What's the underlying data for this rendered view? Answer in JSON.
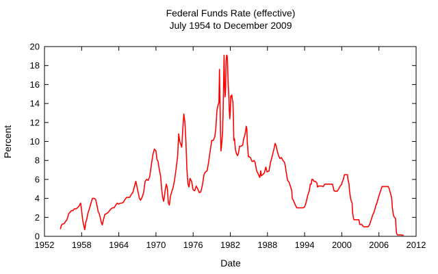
{
  "chart_data": {
    "type": "line",
    "title": "Federal Funds Rate (effective)",
    "subtitle": "July 1954 to December 2009",
    "xlabel": "Date",
    "ylabel": "Percent",
    "xlim": [
      1952,
      2012
    ],
    "ylim": [
      0,
      20
    ],
    "x_ticks": [
      1952,
      1958,
      1964,
      1970,
      1976,
      1982,
      1988,
      1994,
      2000,
      2006,
      2012
    ],
    "y_ticks": [
      0,
      2,
      4,
      6,
      8,
      10,
      12,
      14,
      16,
      18,
      20
    ],
    "grid": false,
    "legend": "none",
    "line_color": "#ff0000",
    "frame_color": "#000000",
    "series": [
      {
        "name": "Federal Funds Rate (effective), percent",
        "points": [
          [
            1954.58,
            0.8
          ],
          [
            1954.75,
            1.2
          ],
          [
            1954.92,
            1.3
          ],
          [
            1955.08,
            1.3
          ],
          [
            1955.25,
            1.4
          ],
          [
            1955.42,
            1.6
          ],
          [
            1955.58,
            1.7
          ],
          [
            1955.75,
            2.0
          ],
          [
            1955.92,
            2.4
          ],
          [
            1956.08,
            2.5
          ],
          [
            1956.33,
            2.7
          ],
          [
            1956.58,
            2.7
          ],
          [
            1956.83,
            2.9
          ],
          [
            1957.08,
            2.9
          ],
          [
            1957.33,
            3.0
          ],
          [
            1957.58,
            3.2
          ],
          [
            1957.83,
            3.5
          ],
          [
            1958.0,
            2.7
          ],
          [
            1958.17,
            1.7
          ],
          [
            1958.33,
            1.2
          ],
          [
            1958.5,
            0.7
          ],
          [
            1958.67,
            1.5
          ],
          [
            1958.83,
            1.8
          ],
          [
            1959.0,
            2.4
          ],
          [
            1959.25,
            2.9
          ],
          [
            1959.5,
            3.5
          ],
          [
            1959.75,
            4.0
          ],
          [
            1960.0,
            4.0
          ],
          [
            1960.25,
            3.9
          ],
          [
            1960.5,
            3.2
          ],
          [
            1960.67,
            2.6
          ],
          [
            1960.83,
            2.4
          ],
          [
            1961.0,
            2.0
          ],
          [
            1961.17,
            1.5
          ],
          [
            1961.33,
            1.2
          ],
          [
            1961.5,
            1.7
          ],
          [
            1961.75,
            2.3
          ],
          [
            1962.0,
            2.4
          ],
          [
            1962.25,
            2.5
          ],
          [
            1962.5,
            2.7
          ],
          [
            1962.75,
            2.9
          ],
          [
            1963.0,
            3.0
          ],
          [
            1963.25,
            3.0
          ],
          [
            1963.5,
            3.3
          ],
          [
            1963.75,
            3.5
          ],
          [
            1964.0,
            3.4
          ],
          [
            1964.25,
            3.5
          ],
          [
            1964.5,
            3.5
          ],
          [
            1964.75,
            3.6
          ],
          [
            1965.0,
            3.9
          ],
          [
            1965.25,
            4.1
          ],
          [
            1965.5,
            4.1
          ],
          [
            1965.75,
            4.1
          ],
          [
            1966.0,
            4.4
          ],
          [
            1966.25,
            4.6
          ],
          [
            1966.5,
            5.2
          ],
          [
            1966.75,
            5.8
          ],
          [
            1967.0,
            5.0
          ],
          [
            1967.17,
            4.5
          ],
          [
            1967.33,
            4.0
          ],
          [
            1967.5,
            3.8
          ],
          [
            1967.75,
            4.1
          ],
          [
            1968.0,
            4.6
          ],
          [
            1968.25,
            5.8
          ],
          [
            1968.5,
            6.0
          ],
          [
            1968.75,
            5.9
          ],
          [
            1969.0,
            6.3
          ],
          [
            1969.25,
            7.5
          ],
          [
            1969.5,
            8.6
          ],
          [
            1969.75,
            9.2
          ],
          [
            1970.0,
            9.0
          ],
          [
            1970.17,
            8.1
          ],
          [
            1970.33,
            7.9
          ],
          [
            1970.5,
            7.2
          ],
          [
            1970.75,
            6.3
          ],
          [
            1970.92,
            5.0
          ],
          [
            1971.08,
            4.1
          ],
          [
            1971.25,
            3.7
          ],
          [
            1971.5,
            4.9
          ],
          [
            1971.67,
            5.5
          ],
          [
            1971.83,
            5.1
          ],
          [
            1972.0,
            3.5
          ],
          [
            1972.17,
            3.3
          ],
          [
            1972.33,
            4.2
          ],
          [
            1972.5,
            4.6
          ],
          [
            1972.75,
            5.1
          ],
          [
            1973.0,
            5.9
          ],
          [
            1973.25,
            7.1
          ],
          [
            1973.5,
            8.5
          ],
          [
            1973.67,
            10.8
          ],
          [
            1973.83,
            10.0
          ],
          [
            1974.0,
            9.7
          ],
          [
            1974.17,
            9.4
          ],
          [
            1974.33,
            11.3
          ],
          [
            1974.5,
            12.9
          ],
          [
            1974.67,
            12.0
          ],
          [
            1974.83,
            10.1
          ],
          [
            1975.0,
            7.1
          ],
          [
            1975.17,
            5.5
          ],
          [
            1975.33,
            5.2
          ],
          [
            1975.5,
            6.1
          ],
          [
            1975.75,
            5.8
          ],
          [
            1976.0,
            4.9
          ],
          [
            1976.25,
            4.8
          ],
          [
            1976.5,
            5.3
          ],
          [
            1976.75,
            5.0
          ],
          [
            1977.0,
            4.6
          ],
          [
            1977.25,
            4.7
          ],
          [
            1977.5,
            5.4
          ],
          [
            1977.75,
            6.5
          ],
          [
            1978.0,
            6.8
          ],
          [
            1978.25,
            6.9
          ],
          [
            1978.5,
            7.8
          ],
          [
            1978.75,
            9.0
          ],
          [
            1979.0,
            10.1
          ],
          [
            1979.25,
            10.1
          ],
          [
            1979.5,
            10.5
          ],
          [
            1979.67,
            11.4
          ],
          [
            1979.83,
            13.2
          ],
          [
            1980.0,
            13.8
          ],
          [
            1980.17,
            14.1
          ],
          [
            1980.25,
            17.6
          ],
          [
            1980.42,
            11.0
          ],
          [
            1980.5,
            9.0
          ],
          [
            1980.58,
            9.5
          ],
          [
            1980.75,
            10.9
          ],
          [
            1980.83,
            12.8
          ],
          [
            1980.92,
            15.9
          ],
          [
            1981.0,
            19.1
          ],
          [
            1981.08,
            15.9
          ],
          [
            1981.17,
            14.7
          ],
          [
            1981.25,
            15.7
          ],
          [
            1981.33,
            18.5
          ],
          [
            1981.42,
            19.1
          ],
          [
            1981.5,
            19.0
          ],
          [
            1981.58,
            17.8
          ],
          [
            1981.67,
            15.9
          ],
          [
            1981.75,
            15.1
          ],
          [
            1981.83,
            13.3
          ],
          [
            1981.92,
            12.4
          ],
          [
            1982.0,
            13.2
          ],
          [
            1982.08,
            14.8
          ],
          [
            1982.17,
            14.7
          ],
          [
            1982.25,
            14.9
          ],
          [
            1982.33,
            14.4
          ],
          [
            1982.42,
            14.2
          ],
          [
            1982.5,
            12.6
          ],
          [
            1982.58,
            10.1
          ],
          [
            1982.67,
            10.3
          ],
          [
            1982.75,
            9.7
          ],
          [
            1982.83,
            9.2
          ],
          [
            1982.92,
            8.9
          ],
          [
            1983.0,
            8.7
          ],
          [
            1983.17,
            8.5
          ],
          [
            1983.33,
            8.8
          ],
          [
            1983.5,
            9.5
          ],
          [
            1983.75,
            9.5
          ],
          [
            1984.0,
            9.6
          ],
          [
            1984.17,
            10.3
          ],
          [
            1984.33,
            10.6
          ],
          [
            1984.5,
            11.2
          ],
          [
            1984.58,
            11.6
          ],
          [
            1984.67,
            11.3
          ],
          [
            1984.75,
            9.9
          ],
          [
            1984.92,
            8.4
          ],
          [
            1985.0,
            8.4
          ],
          [
            1985.25,
            8.3
          ],
          [
            1985.5,
            7.9
          ],
          [
            1985.67,
            7.9
          ],
          [
            1985.83,
            8.0
          ],
          [
            1986.0,
            7.8
          ],
          [
            1986.25,
            6.9
          ],
          [
            1986.5,
            6.6
          ],
          [
            1986.75,
            6.2
          ],
          [
            1986.92,
            6.9
          ],
          [
            1987.0,
            6.4
          ],
          [
            1987.25,
            6.5
          ],
          [
            1987.5,
            6.7
          ],
          [
            1987.75,
            7.3
          ],
          [
            1987.92,
            6.8
          ],
          [
            1988.0,
            6.8
          ],
          [
            1988.25,
            6.9
          ],
          [
            1988.5,
            7.8
          ],
          [
            1988.75,
            8.4
          ],
          [
            1989.0,
            9.1
          ],
          [
            1989.25,
            9.8
          ],
          [
            1989.42,
            9.5
          ],
          [
            1989.5,
            9.2
          ],
          [
            1989.75,
            8.6
          ],
          [
            1990.0,
            8.2
          ],
          [
            1990.25,
            8.3
          ],
          [
            1990.5,
            8.0
          ],
          [
            1990.75,
            7.8
          ],
          [
            1990.92,
            7.3
          ],
          [
            1991.0,
            6.9
          ],
          [
            1991.25,
            5.9
          ],
          [
            1991.5,
            5.7
          ],
          [
            1991.75,
            5.2
          ],
          [
            1991.92,
            4.8
          ],
          [
            1992.0,
            4.0
          ],
          [
            1992.25,
            3.7
          ],
          [
            1992.5,
            3.3
          ],
          [
            1992.75,
            3.0
          ],
          [
            1993.0,
            3.0
          ],
          [
            1993.25,
            3.0
          ],
          [
            1993.5,
            3.0
          ],
          [
            1993.75,
            3.0
          ],
          [
            1994.0,
            3.1
          ],
          [
            1994.25,
            3.6
          ],
          [
            1994.5,
            4.3
          ],
          [
            1994.75,
            4.8
          ],
          [
            1994.92,
            5.5
          ],
          [
            1995.08,
            5.5
          ],
          [
            1995.17,
            6.0
          ],
          [
            1995.33,
            6.0
          ],
          [
            1995.5,
            5.8
          ],
          [
            1995.75,
            5.8
          ],
          [
            1996.0,
            5.6
          ],
          [
            1996.08,
            5.2
          ],
          [
            1996.25,
            5.3
          ],
          [
            1996.5,
            5.3
          ],
          [
            1996.75,
            5.3
          ],
          [
            1997.0,
            5.25
          ],
          [
            1997.25,
            5.5
          ],
          [
            1997.5,
            5.5
          ],
          [
            1997.75,
            5.5
          ],
          [
            1998.0,
            5.5
          ],
          [
            1998.25,
            5.5
          ],
          [
            1998.5,
            5.5
          ],
          [
            1998.75,
            4.8
          ],
          [
            1999.0,
            4.75
          ],
          [
            1999.25,
            4.75
          ],
          [
            1999.5,
            5.0
          ],
          [
            1999.75,
            5.3
          ],
          [
            2000.0,
            5.5
          ],
          [
            2000.08,
            5.75
          ],
          [
            2000.25,
            6.0
          ],
          [
            2000.42,
            6.5
          ],
          [
            2000.58,
            6.5
          ],
          [
            2000.75,
            6.5
          ],
          [
            2000.92,
            6.5
          ],
          [
            2001.0,
            6.0
          ],
          [
            2001.17,
            5.5
          ],
          [
            2001.25,
            4.8
          ],
          [
            2001.42,
            4.0
          ],
          [
            2001.5,
            3.8
          ],
          [
            2001.67,
            3.5
          ],
          [
            2001.75,
            2.5
          ],
          [
            2001.92,
            1.8
          ],
          [
            2002.0,
            1.75
          ],
          [
            2002.25,
            1.75
          ],
          [
            2002.5,
            1.75
          ],
          [
            2002.75,
            1.75
          ],
          [
            2002.92,
            1.25
          ],
          [
            2003.0,
            1.25
          ],
          [
            2003.25,
            1.25
          ],
          [
            2003.5,
            1.0
          ],
          [
            2003.75,
            1.0
          ],
          [
            2004.0,
            1.0
          ],
          [
            2004.25,
            1.0
          ],
          [
            2004.5,
            1.25
          ],
          [
            2004.67,
            1.6
          ],
          [
            2004.83,
            1.9
          ],
          [
            2005.0,
            2.25
          ],
          [
            2005.17,
            2.5
          ],
          [
            2005.33,
            2.8
          ],
          [
            2005.5,
            3.25
          ],
          [
            2005.67,
            3.5
          ],
          [
            2005.83,
            3.9
          ],
          [
            2006.0,
            4.25
          ],
          [
            2006.17,
            4.6
          ],
          [
            2006.33,
            4.9
          ],
          [
            2006.5,
            5.25
          ],
          [
            2006.75,
            5.25
          ],
          [
            2007.0,
            5.25
          ],
          [
            2007.25,
            5.25
          ],
          [
            2007.5,
            5.25
          ],
          [
            2007.67,
            5.0
          ],
          [
            2007.83,
            4.6
          ],
          [
            2008.0,
            4.2
          ],
          [
            2008.08,
            3.9
          ],
          [
            2008.17,
            3.0
          ],
          [
            2008.25,
            2.6
          ],
          [
            2008.33,
            2.25
          ],
          [
            2008.5,
            2.0
          ],
          [
            2008.67,
            1.9
          ],
          [
            2008.75,
            1.0
          ],
          [
            2008.83,
            0.4
          ],
          [
            2008.92,
            0.2
          ],
          [
            2009.0,
            0.15
          ],
          [
            2009.25,
            0.15
          ],
          [
            2009.5,
            0.15
          ],
          [
            2009.75,
            0.12
          ],
          [
            2009.92,
            0.12
          ]
        ]
      }
    ]
  }
}
